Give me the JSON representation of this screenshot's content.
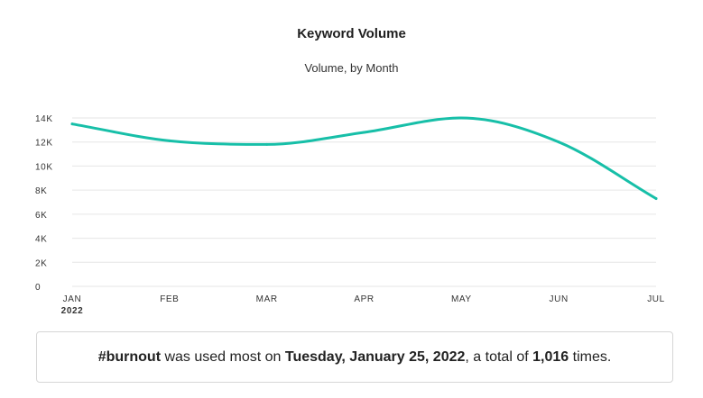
{
  "chart_data": {
    "type": "line",
    "title": "Keyword Volume",
    "subtitle": "Volume, by Month",
    "xlabel": "",
    "ylabel": "",
    "categories": [
      "JAN",
      "FEB",
      "MAR",
      "APR",
      "MAY",
      "JUN",
      "JUL"
    ],
    "year_label": "2022",
    "values": [
      13500,
      12100,
      11800,
      12800,
      14000,
      12000,
      7300
    ],
    "ylim": [
      0,
      14000
    ],
    "yticks": [
      0,
      2000,
      4000,
      6000,
      8000,
      10000,
      12000,
      14000
    ],
    "ytick_labels": [
      "0",
      "2K",
      "4K",
      "6K",
      "8K",
      "10K",
      "12K",
      "14K"
    ],
    "grid": true,
    "curve": "smooth",
    "line_color": "#17bfa8",
    "grid_color": "#e6e6e6"
  },
  "summary": {
    "hashtag": "#burnout",
    "text1": " was used most on ",
    "date": "Tuesday, January 25, 2022",
    "text2": ", a total of ",
    "count": "1,016",
    "text3": " times."
  }
}
